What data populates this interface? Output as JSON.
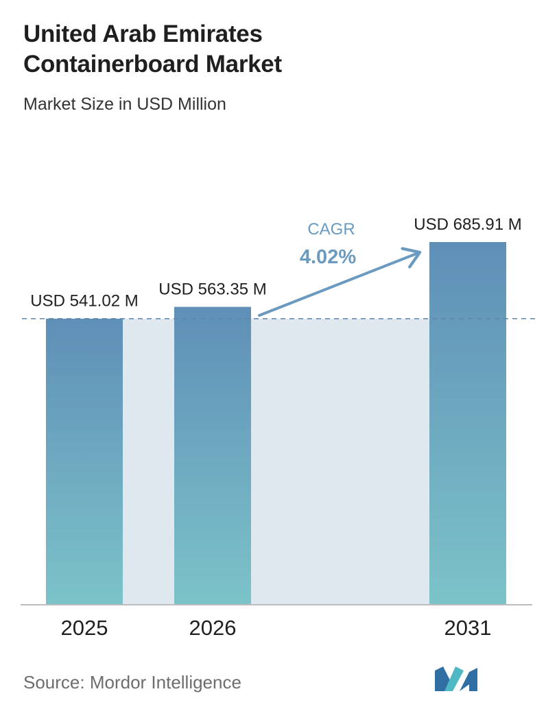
{
  "header": {
    "title_line1": "United Arab Emirates",
    "title_line2": "Containerboard Market",
    "subtitle": "Market Size in USD Million"
  },
  "chart_data": {
    "type": "bar",
    "categories": [
      "2025",
      "2026",
      "2031"
    ],
    "values": [
      541.02,
      563.35,
      685.91
    ],
    "data_labels": [
      "USD 541.02 M",
      "USD 563.35 M",
      "USD 685.91 M"
    ],
    "title": "United Arab Emirates Containerboard Market",
    "subtitle": "Market Size in USD Million",
    "xlabel": "",
    "ylabel": "",
    "grid": false,
    "annotations": {
      "cagr_label": "CAGR",
      "cagr_value": "4.02%"
    },
    "colors": {
      "bar_top": "#5f8fb7",
      "bar_bottom": "#7cc3c9",
      "band": "#dfe7ef",
      "cagr": "#6a9ac0",
      "axis": "#bdbdbd",
      "dashed": "#5f86a6"
    }
  },
  "footer": {
    "source": "Source: Mordor Intelligence",
    "logo_icon": "mordor-intelligence-logo-icon"
  }
}
